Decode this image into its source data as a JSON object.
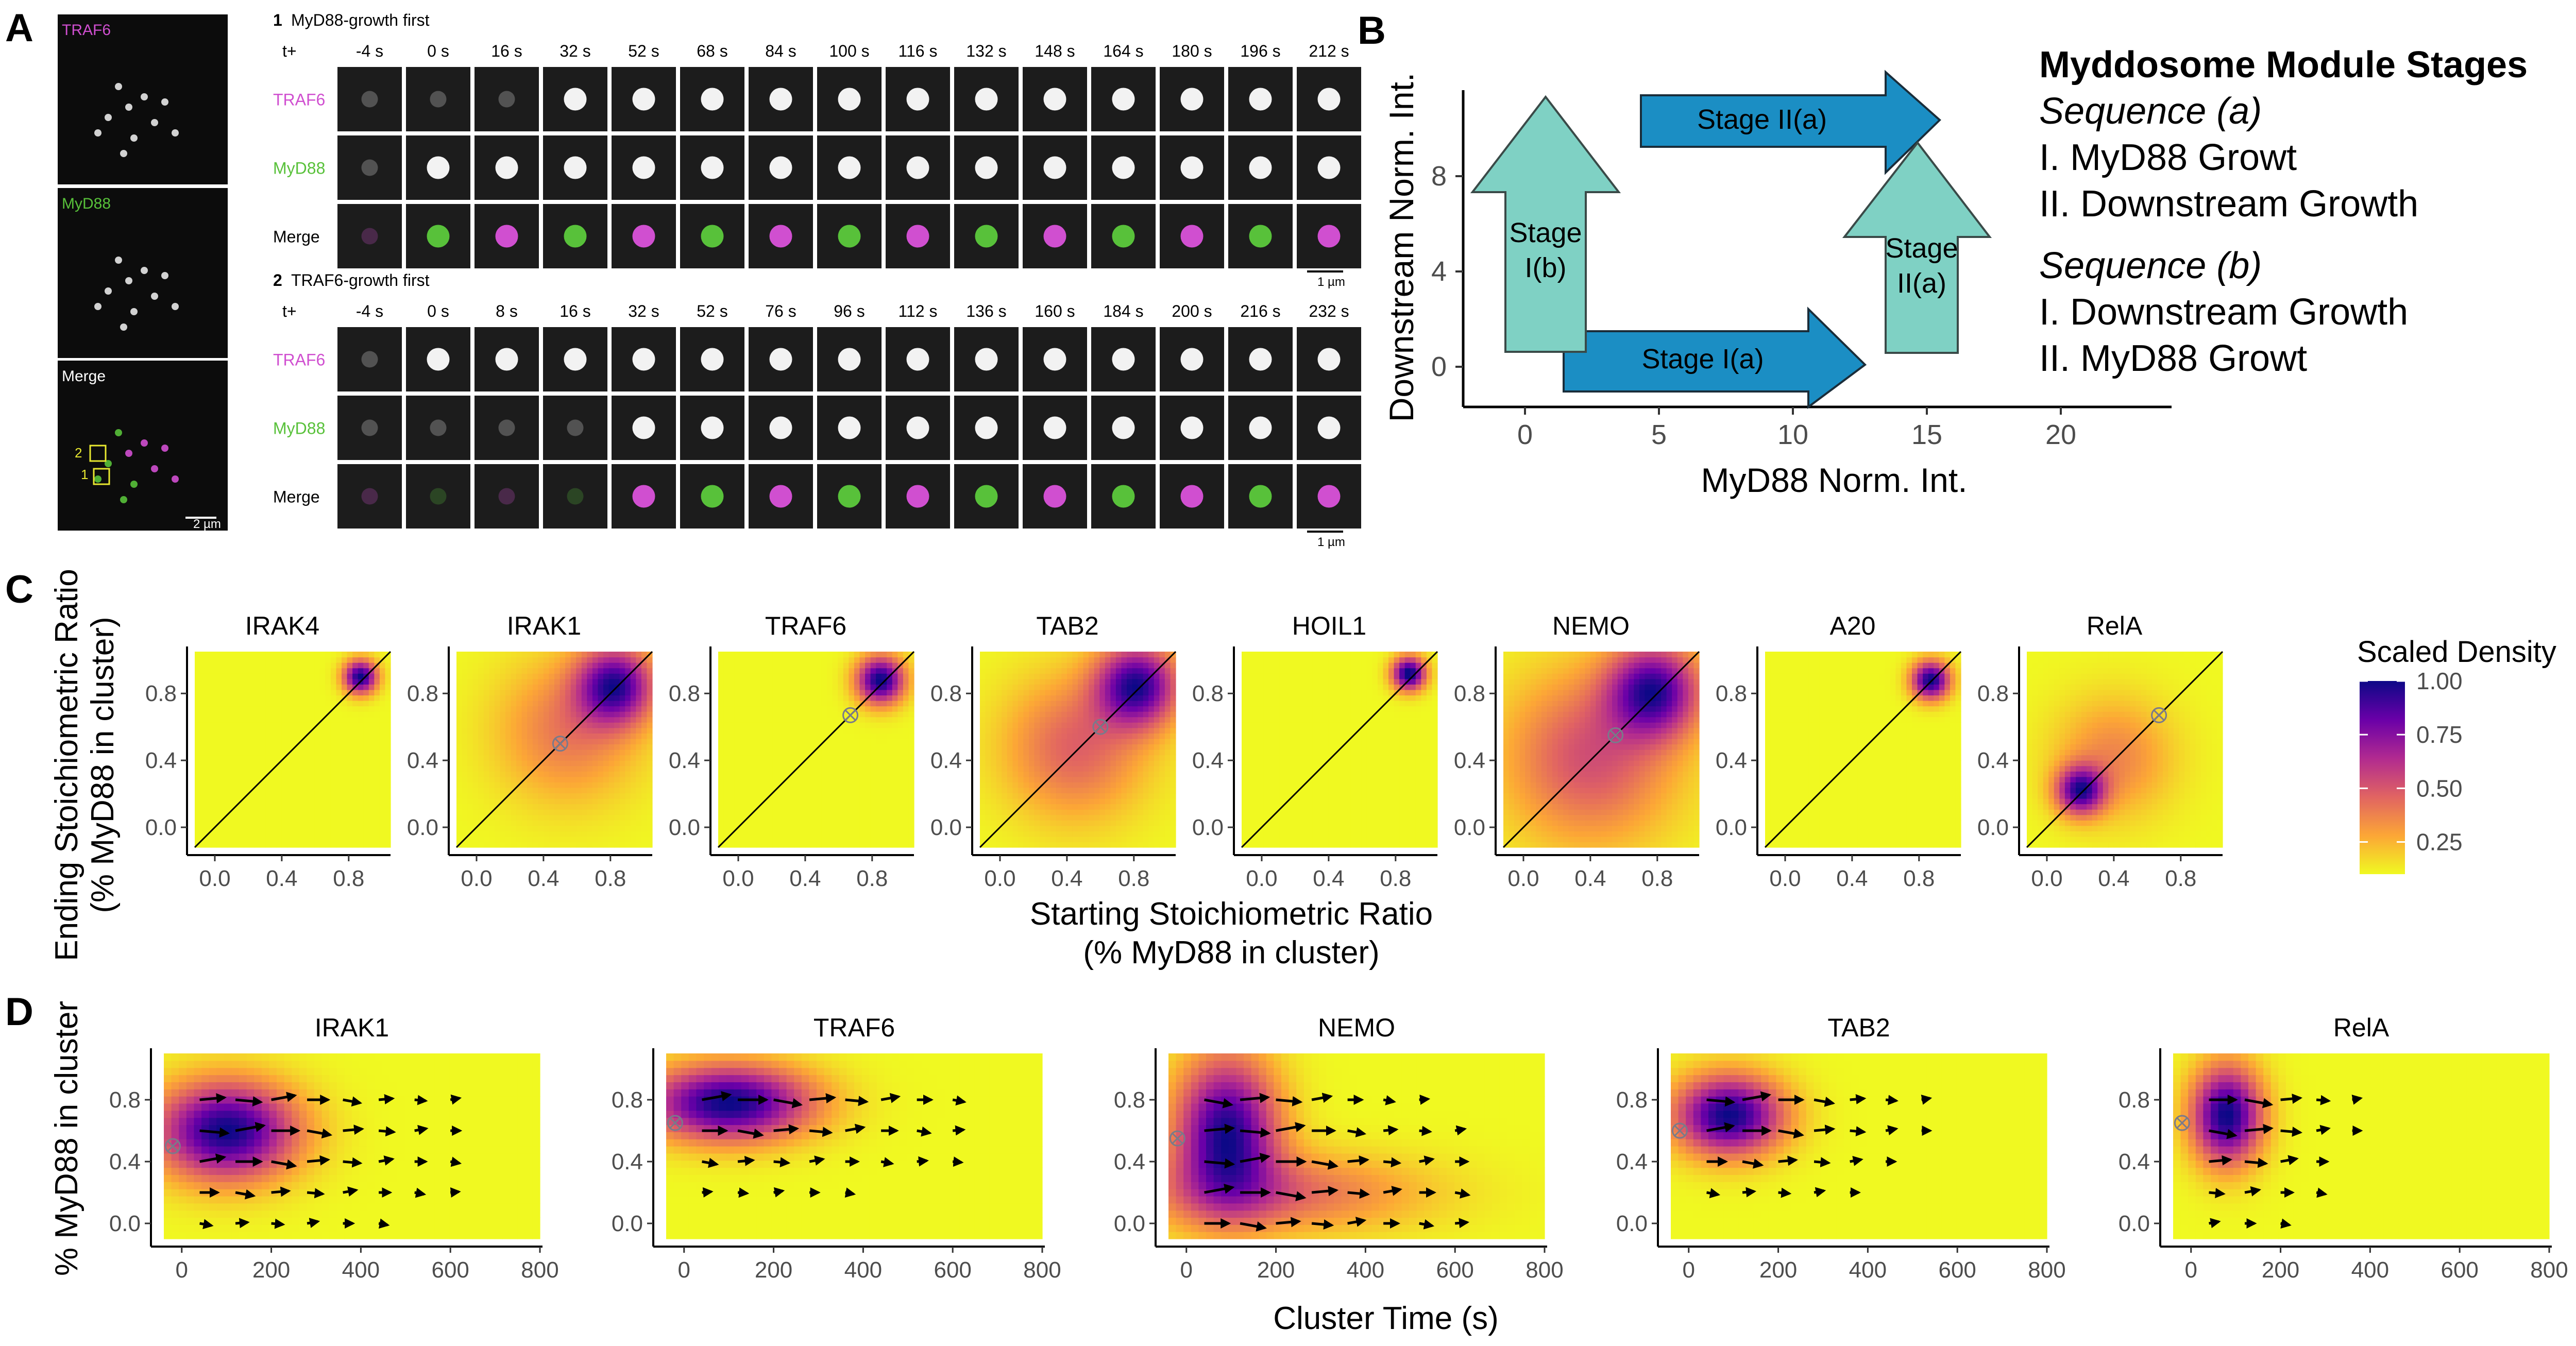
{
  "panel_letters": [
    "A",
    "B",
    "C",
    "D"
  ],
  "panelA": {
    "overview_labels": [
      "TRAF6",
      "MyD88",
      "Merge"
    ],
    "overview_scale": "2 µm",
    "roi_labels": [
      "2",
      "1"
    ],
    "rows": [
      {
        "number": "1",
        "title": "MyD88-growth first",
        "t_label": "t+",
        "times": [
          "-4 s",
          "0 s",
          "16 s",
          "32 s",
          "52 s",
          "68 s",
          "84 s",
          "100 s",
          "116 s",
          "132 s",
          "148 s",
          "164 s",
          "180 s",
          "196 s",
          "212 s"
        ],
        "channels": [
          "TRAF6",
          "MyD88",
          "Merge"
        ],
        "scale": "1 µm"
      },
      {
        "number": "2",
        "title": "TRAF6-growth first",
        "t_label": "t+",
        "times": [
          "-4 s",
          "0 s",
          "8 s",
          "16 s",
          "32 s",
          "52 s",
          "76 s",
          "96 s",
          "112 s",
          "136 s",
          "160 s",
          "184 s",
          "200 s",
          "216 s",
          "232 s"
        ],
        "channels": [
          "TRAF6",
          "MyD88",
          "Merge"
        ],
        "scale": "1 µm"
      }
    ],
    "colors": {
      "traf6": "#d04fd0",
      "myd88": "#58c13a"
    }
  },
  "panelB": {
    "xlabel": "MyD88 Norm. Int.",
    "ylabel": "Downstream Norm. Int.",
    "xticks": [
      "0",
      "5",
      "10",
      "15",
      "20"
    ],
    "yticks": [
      "0",
      "4",
      "8"
    ],
    "arrows": {
      "stage_ia": "Stage I(a)",
      "stage_iia": "Stage II(a)",
      "stage_ib": [
        "Stage",
        "I(b)"
      ],
      "stage_iib": [
        "Stage",
        "II(a)"
      ]
    },
    "legend": {
      "title": "Myddosome Module Stages",
      "seq_a": "Sequence (a)",
      "seq_a_1": "I. MyD88 Growt",
      "seq_a_2": "II. Downstream Growth",
      "seq_b": "Sequence (b)",
      "seq_b_1": "I. Downstream Growth",
      "seq_b_2": "II. MyD88 Growt"
    },
    "colors": {
      "blue_arrow": "#1b8ec4",
      "teal_arrow": "#7fd1c4"
    }
  },
  "panelC": {
    "ylabel_1": "Ending Stoichiometric Ratio",
    "ylabel_2": "(% MyD88 in cluster)",
    "xlabel_1": "Starting Stoichiometric Ratio",
    "xlabel_2": "(% MyD88 in cluster)",
    "ticks": [
      "0.0",
      "0.4",
      "0.8"
    ],
    "colorbar": {
      "title": "Scaled Density",
      "ticks": [
        "1.00",
        "0.75",
        "0.50",
        "0.25"
      ],
      "low_color": "#f0f921",
      "high_color": "#0d0887"
    }
  },
  "panelD": {
    "ylabel": "% MyD88 in cluster",
    "xlabel": "Cluster Time (s)",
    "xticks": [
      "0",
      "200",
      "400",
      "600",
      "800"
    ],
    "yticks": [
      "0.0",
      "0.4",
      "0.8"
    ]
  },
  "chart_data": [
    {
      "type": "heatmap",
      "panel": "C",
      "xlabel": "Starting Stoichiometric Ratio (% MyD88 in cluster)",
      "ylabel": "Ending Stoichiometric Ratio (% MyD88 in cluster)",
      "xlim": [
        -0.12,
        1.05
      ],
      "ylim": [
        -0.12,
        1.05
      ],
      "colorbar_range": [
        0.1,
        1.0
      ],
      "diagonal": true,
      "facets": [
        {
          "name": "IRAK4",
          "modes": [
            {
              "x": 0.87,
              "y": 0.9,
              "sigma": 0.07,
              "weight": 1.0
            }
          ]
        },
        {
          "name": "IRAK1",
          "modes": [
            {
              "x": 0.83,
              "y": 0.85,
              "sigma": 0.16,
              "weight": 1.0
            },
            {
              "x": 0.55,
              "y": 0.58,
              "sigma": 0.3,
              "weight": 0.4
            }
          ],
          "marker": [
            0.5,
            0.5
          ]
        },
        {
          "name": "TRAF6",
          "modes": [
            {
              "x": 0.85,
              "y": 0.88,
              "sigma": 0.1,
              "weight": 1.0
            }
          ],
          "marker": [
            0.67,
            0.67
          ]
        },
        {
          "name": "TAB2",
          "modes": [
            {
              "x": 0.82,
              "y": 0.85,
              "sigma": 0.17,
              "weight": 1.0
            },
            {
              "x": 0.45,
              "y": 0.48,
              "sigma": 0.3,
              "weight": 0.45
            }
          ],
          "marker": [
            0.6,
            0.6
          ]
        },
        {
          "name": "HOIL1",
          "modes": [
            {
              "x": 0.88,
              "y": 0.92,
              "sigma": 0.07,
              "weight": 1.0
            }
          ]
        },
        {
          "name": "NEMO",
          "modes": [
            {
              "x": 0.78,
              "y": 0.82,
              "sigma": 0.19,
              "weight": 1.0
            },
            {
              "x": 0.4,
              "y": 0.42,
              "sigma": 0.36,
              "weight": 0.55
            }
          ],
          "marker": [
            0.55,
            0.55
          ]
        },
        {
          "name": "A20",
          "modes": [
            {
              "x": 0.87,
              "y": 0.88,
              "sigma": 0.08,
              "weight": 1.0
            }
          ]
        },
        {
          "name": "RelA",
          "modes": [
            {
              "x": 0.2,
              "y": 0.22,
              "sigma": 0.1,
              "weight": 1.0
            },
            {
              "x": 0.4,
              "y": 0.42,
              "sigma": 0.25,
              "weight": 0.35
            }
          ],
          "marker": [
            0.67,
            0.67
          ]
        }
      ]
    },
    {
      "type": "heatmap",
      "panel": "D",
      "xlabel": "Cluster Time (s)",
      "ylabel": "% MyD88 in cluster",
      "xlim": [
        -40,
        800
      ],
      "ylim": [
        -0.1,
        1.1
      ],
      "facets": [
        {
          "name": "IRAK1",
          "modes": [
            {
              "t": 100,
              "y": 0.6,
              "st": 110,
              "sy": 0.22,
              "weight": 1.0
            }
          ],
          "marker": [
            -20,
            0.5
          ]
        },
        {
          "name": "TRAF6",
          "modes": [
            {
              "t": 100,
              "y": 0.78,
              "st": 130,
              "sy": 0.17,
              "weight": 1.0
            }
          ],
          "marker": [
            -20,
            0.65
          ]
        },
        {
          "name": "NEMO",
          "modes": [
            {
              "t": 90,
              "y": 0.6,
              "st": 80,
              "sy": 0.33,
              "weight": 1.0
            },
            {
              "t": 200,
              "y": 0.2,
              "st": 230,
              "sy": 0.18,
              "weight": 0.4
            }
          ],
          "marker": [
            -20,
            0.55
          ]
        },
        {
          "name": "TAB2",
          "modes": [
            {
              "t": 90,
              "y": 0.7,
              "st": 85,
              "sy": 0.18,
              "weight": 1.0
            }
          ],
          "marker": [
            -20,
            0.6
          ]
        },
        {
          "name": "RelA",
          "modes": [
            {
              "t": 80,
              "y": 0.7,
              "st": 55,
              "sy": 0.22,
              "weight": 1.0
            }
          ],
          "marker": [
            -20,
            0.65
          ]
        }
      ]
    }
  ]
}
